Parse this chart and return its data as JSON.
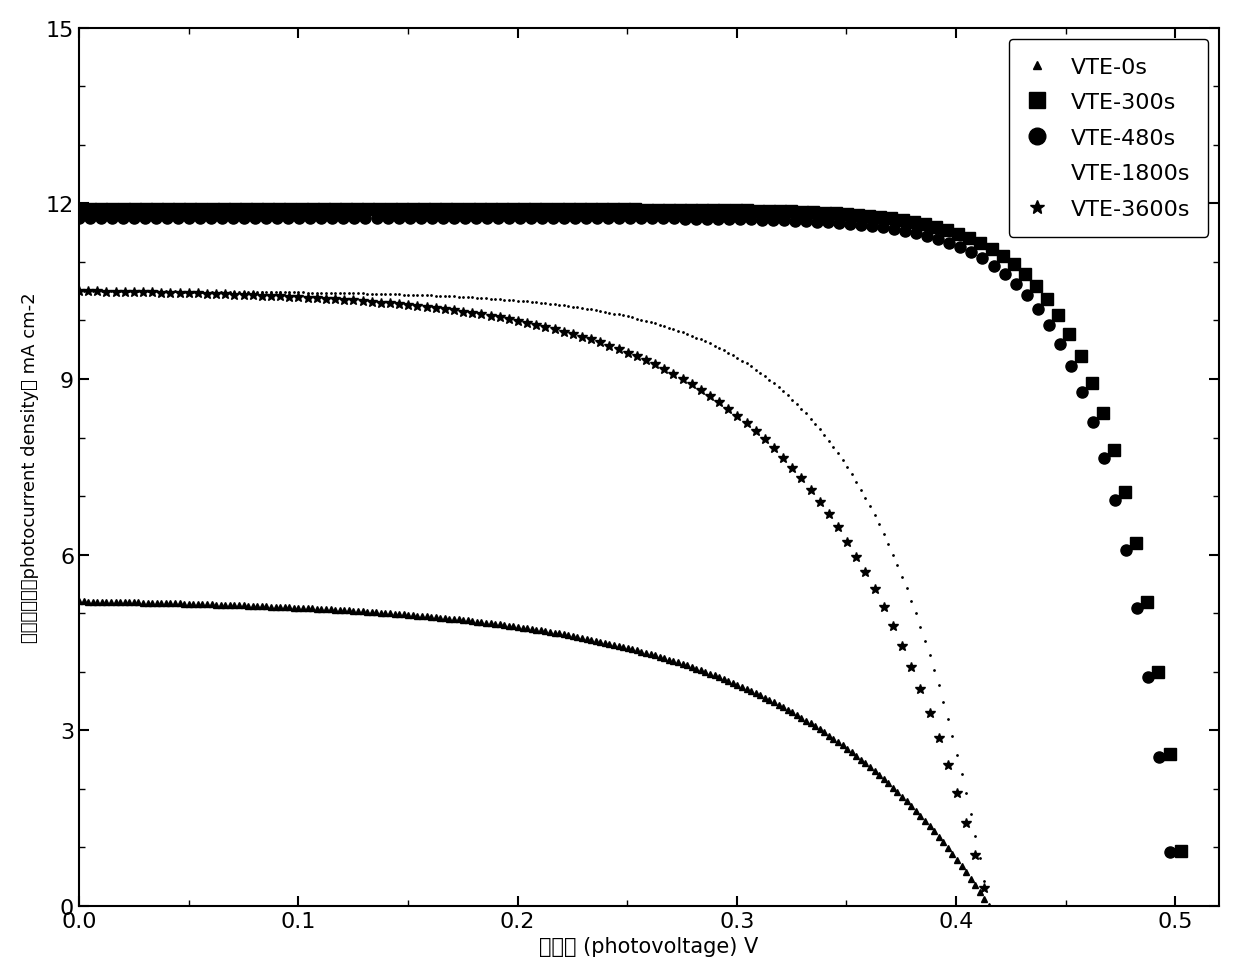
{
  "series": [
    {
      "label": "VTE-0s",
      "marker": "^",
      "color": "#000000",
      "jsc": 5.2,
      "voc": 0.415,
      "n_factor": 3.5,
      "markersize": 4,
      "markevery": 1
    },
    {
      "label": "VTE-300s",
      "marker": "s",
      "color": "#000000",
      "jsc": 11.9,
      "voc": 0.505,
      "n_factor": 1.2,
      "markersize": 8,
      "markevery": 2
    },
    {
      "label": "VTE-480s",
      "marker": "o",
      "color": "#000000",
      "jsc": 11.75,
      "voc": 0.5,
      "n_factor": 1.2,
      "markersize": 8,
      "markevery": 2
    },
    {
      "label": "VTE-1800s",
      "marker": "none",
      "color": "#000000",
      "jsc": 10.5,
      "voc": 0.415,
      "n_factor": 2.0,
      "markersize": 3,
      "markevery": 1
    },
    {
      "label": "VTE-3600s",
      "marker": "*",
      "color": "#000000",
      "jsc": 10.5,
      "voc": 0.415,
      "n_factor": 2.8,
      "markersize": 7,
      "markevery": 2
    }
  ],
  "xlabel_chinese": "光电压",
  "xlabel_paren": "(photovoltage)",
  "xlabel_unit": "V",
  "ylabel_chinese": "光电流密度（photocurrent density） mA cm-2",
  "xlim": [
    0.0,
    0.52
  ],
  "ylim": [
    0,
    15
  ],
  "xticks": [
    0.0,
    0.1,
    0.2,
    0.3,
    0.4,
    0.5
  ],
  "yticks": [
    0,
    3,
    6,
    9,
    12,
    15
  ],
  "background_color": "#ffffff",
  "n_points": 200
}
